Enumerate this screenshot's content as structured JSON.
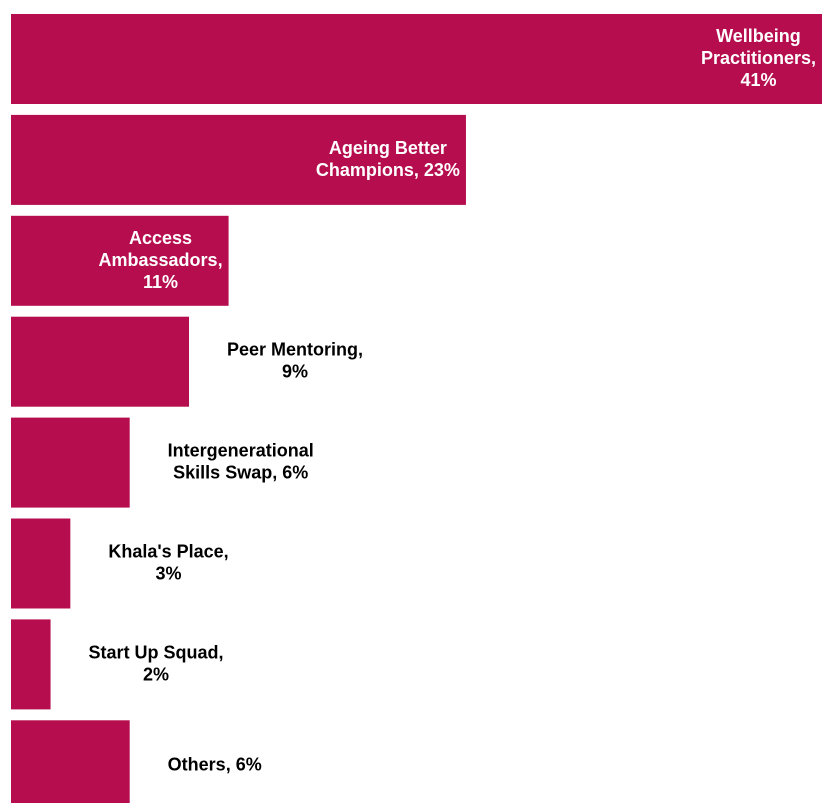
{
  "chart_data": {
    "type": "hbar",
    "color": "#b50d4d",
    "values": [
      41,
      23,
      11,
      9,
      6,
      3,
      2,
      6
    ],
    "value_labels": [
      "Wellbeing Practitioners, 41%",
      "Ageing Better Champions, 23%",
      "Access Ambassadors, 11%",
      "Peer Mentoring, 9%",
      "Intergenerational Skills Swap, 6%",
      "Khala's Place, 3%",
      "Start Up Squad, 2%",
      "Others, 6%"
    ]
  }
}
